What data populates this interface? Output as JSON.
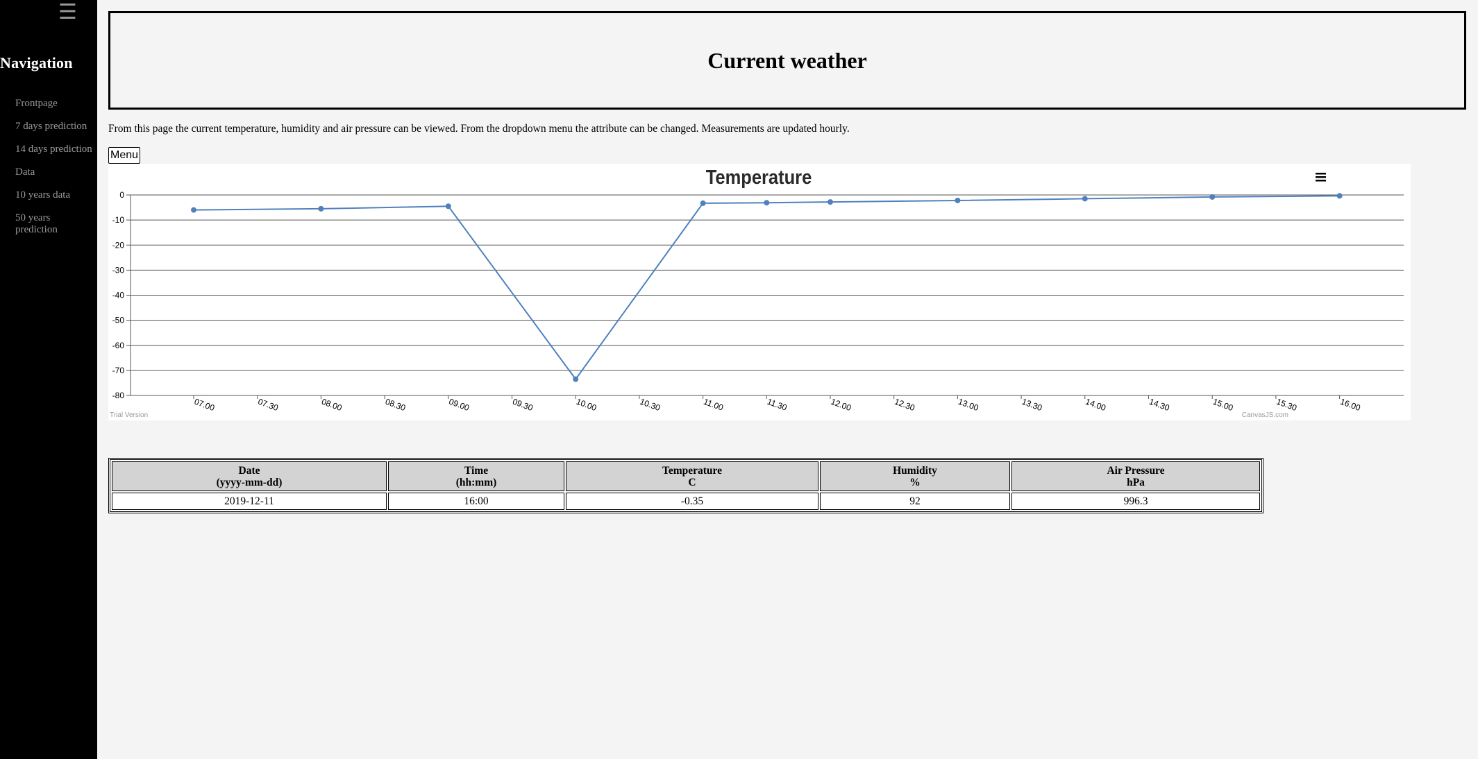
{
  "sidebar": {
    "toggle_icon": "hamburger-menu-icon",
    "title": "Navigation",
    "items": [
      {
        "label": "Frontpage"
      },
      {
        "label": "7 days prediction"
      },
      {
        "label": "14 days prediction"
      },
      {
        "label": "Data"
      },
      {
        "label": "10 years data"
      },
      {
        "label": "50 years prediction"
      }
    ]
  },
  "header": {
    "title": "Current weather"
  },
  "description": "From this page the current temperature, humidity and air pressure can be viewed. From the dropdown menu the attribute can be changed. Measurements are updated hourly.",
  "menu_button": {
    "label": "Menu"
  },
  "chart_menu_icon": "hamburger-menu-icon",
  "chart_watermark_left": "Trial Version",
  "chart_watermark_right": "CanvasJS.com",
  "colors": {
    "series": "#4f81bc",
    "sidebar_bg": "#000000",
    "page_bg": "#f4f4f4",
    "table_header_bg": "#d3d3d3"
  },
  "chart_data": {
    "type": "line",
    "title": "Temperature",
    "xlabel": "",
    "ylabel": "",
    "ylim": [
      -80,
      0
    ],
    "y_ticks": [
      0,
      -10,
      -20,
      -30,
      -40,
      -50,
      -60,
      -70,
      -80
    ],
    "x_tick_labels": [
      "07.00",
      "07.30",
      "08.00",
      "08.30",
      "09.00",
      "09.30",
      "10.00",
      "10.30",
      "11.00",
      "11.30",
      "12.00",
      "12.30",
      "13.00",
      "13.30",
      "14.00",
      "14.30",
      "15.00",
      "15.30",
      "16.00"
    ],
    "grid": true,
    "series": [
      {
        "x": [
          "07.00",
          "08.00",
          "09.00",
          "10.00",
          "11.00",
          "11.30",
          "12.00",
          "13.00",
          "14.00",
          "15.00",
          "16.00"
        ],
        "values": [
          -6,
          -5.5,
          -4.5,
          -73.5,
          -3.3,
          -3.1,
          -2.8,
          -2.2,
          -1.5,
          -0.8,
          -0.35
        ]
      }
    ]
  },
  "table": {
    "headers": [
      {
        "line1": "Date",
        "line2": "(yyyy-mm-dd)"
      },
      {
        "line1": "Time",
        "line2": "(hh:mm)"
      },
      {
        "line1": "Temperature",
        "line2": "C"
      },
      {
        "line1": "Humidity",
        "line2": "%"
      },
      {
        "line1": "Air Pressure",
        "line2": "hPa"
      }
    ],
    "row": [
      "2019-12-11",
      "16:00",
      "-0.35",
      "92",
      "996.3"
    ]
  }
}
